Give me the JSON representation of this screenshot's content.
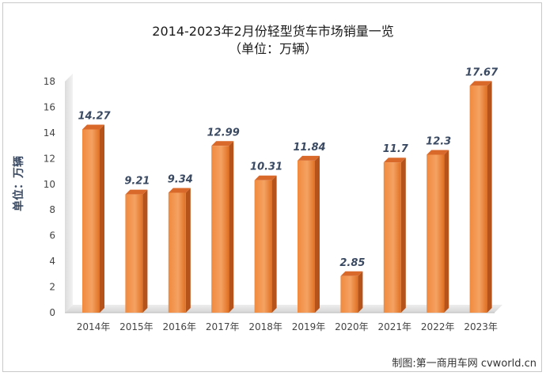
{
  "chart_data": {
    "type": "bar",
    "title": "2014-2023年2月份轻型货车市场销量一览",
    "subtitle": "（单位：万辆）",
    "ylabel": "单位：万辆",
    "categories": [
      "2014年",
      "2015年",
      "2016年",
      "2017年",
      "2018年",
      "2019年",
      "2020年",
      "2021年",
      "2022年",
      "2023年"
    ],
    "values": [
      14.27,
      9.21,
      9.34,
      12.99,
      10.31,
      11.84,
      2.85,
      11.7,
      12.3,
      17.67
    ],
    "data_labels": [
      "14.27",
      "9.21",
      "9.34",
      "12.99",
      "10.31",
      "11.84",
      "2.85",
      "11.7",
      "12.3",
      "17.67"
    ],
    "yticks": [
      "0",
      "2",
      "4",
      "6",
      "8",
      "10",
      "12",
      "14",
      "16",
      "18"
    ],
    "ylim": [
      0,
      18
    ],
    "grid": false,
    "bar_color": "#ED7D31"
  },
  "credit": "制图:第一商用车网 cvworld.cn"
}
